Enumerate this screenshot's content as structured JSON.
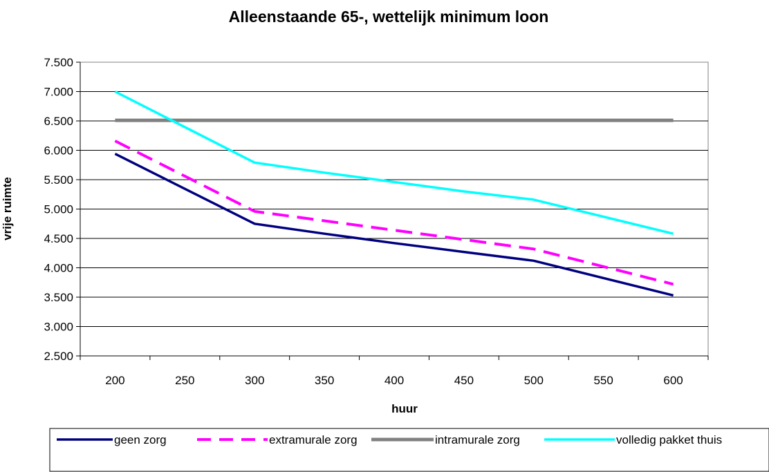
{
  "chart_data": {
    "type": "line",
    "title": "Alleenstaande 65-,  wettelijk minimum loon",
    "xlabel": "huur",
    "ylabel": "vrije ruimte",
    "x": [
      200,
      250,
      300,
      350,
      400,
      450,
      500,
      550,
      600
    ],
    "x_tick_labels": [
      "200",
      "250",
      "300",
      "350",
      "400",
      "450",
      "500",
      "550",
      "600"
    ],
    "ylim": [
      2500,
      7500
    ],
    "y_ticks": [
      2500,
      3000,
      3500,
      4000,
      4500,
      5000,
      5500,
      6000,
      6500,
      7000,
      7500
    ],
    "y_tick_labels": [
      "2.500",
      "3.000",
      "3.500",
      "4.000",
      "4.500",
      "5.000",
      "5.500",
      "6.000",
      "6.500",
      "7.000",
      "7.500"
    ],
    "grid": "horizontal",
    "legend_position": "bottom",
    "series": [
      {
        "name": "geen zorg",
        "color": "#000080",
        "dash": "solid",
        "x": [
          200,
          300,
          350,
          400,
          450,
          500,
          600
        ],
        "values": [
          5940,
          4750,
          4580,
          4420,
          4270,
          4120,
          3530
        ]
      },
      {
        "name": "extramurale zorg",
        "color": "#ff00ff",
        "dash": "dashed",
        "x": [
          200,
          300,
          350,
          400,
          450,
          500,
          600
        ],
        "values": [
          6160,
          4960,
          4800,
          4640,
          4480,
          4320,
          3720
        ]
      },
      {
        "name": "intramurale zorg",
        "color": "#808080",
        "dash": "solid",
        "x": [
          200,
          600
        ],
        "values": [
          6510,
          6510
        ]
      },
      {
        "name": "volledig pakket thuis",
        "color": "#00ffff",
        "dash": "solid",
        "x": [
          200,
          300,
          350,
          400,
          450,
          500,
          600
        ],
        "values": [
          7000,
          5790,
          5620,
          5460,
          5300,
          5160,
          4580
        ]
      }
    ]
  }
}
